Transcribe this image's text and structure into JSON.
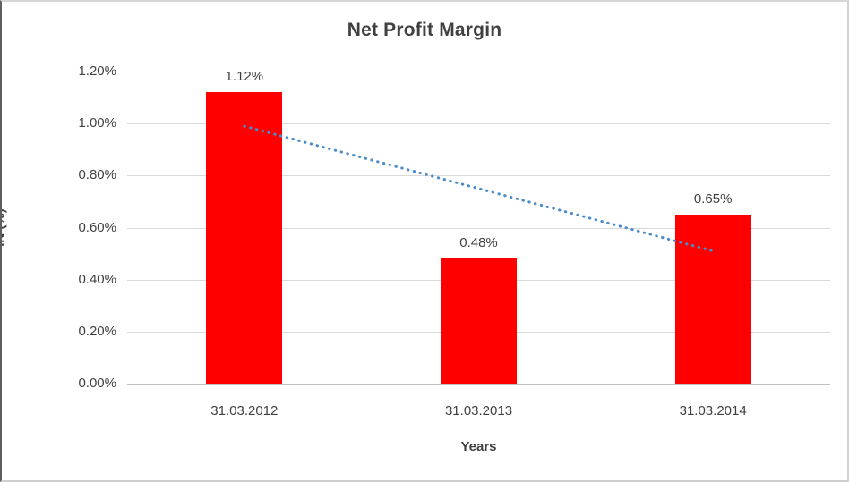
{
  "chart_data": {
    "type": "bar",
    "title": "Net Profit Margin",
    "xlabel": "Years",
    "ylabel": "IN (%)",
    "categories": [
      "31.03.2012",
      "31.03.2013",
      "31.03.2014"
    ],
    "values": [
      1.12,
      0.48,
      0.65
    ],
    "data_labels": [
      "1.12%",
      "0.48%",
      "0.65%"
    ],
    "y_ticks": [
      {
        "value": 0.0,
        "label": "0.00%"
      },
      {
        "value": 0.2,
        "label": "0.20%"
      },
      {
        "value": 0.4,
        "label": "0.40%"
      },
      {
        "value": 0.6,
        "label": "0.60%"
      },
      {
        "value": 0.8,
        "label": "0.80%"
      },
      {
        "value": 1.0,
        "label": "1.00%"
      },
      {
        "value": 1.2,
        "label": "1.20%"
      }
    ],
    "ylim": [
      0,
      1.2
    ],
    "grid": true,
    "legend": "none",
    "bar_color": "#ff0000",
    "gridline_color": "#d9d9d9",
    "text_color": "#404040",
    "trendline": {
      "style": "dotted",
      "color": "#4a8bc9",
      "start_value": 0.99,
      "end_value": 0.51
    }
  }
}
